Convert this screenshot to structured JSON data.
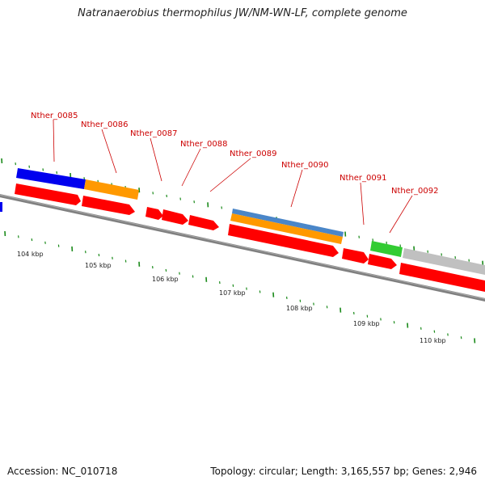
{
  "title": "Natranaerobius thermophilus JW/NM-WN-LF, complete genome",
  "footer": {
    "accession": "Accession: NC_010718",
    "topology": "Topology: circular; Length: 3,165,557 bp; Genes: 2,946"
  },
  "colors": {
    "backbone": "#808080",
    "gene_red": "#ff0000",
    "gene_blue": "#0000ee",
    "gene_orange": "#ff9900",
    "gene_steelblue": "#4a86c8",
    "gene_green": "#33cc33",
    "gene_gray": "#c0c0c0",
    "tick_green": "#1a8a1a",
    "label_red": "#cc0000"
  },
  "axis": {
    "unit": "kbp",
    "major_ticks": [
      "104 kbp",
      "105 kbp",
      "106 kbp",
      "107 kbp",
      "108 kbp",
      "109 kbp",
      "110 kbp"
    ]
  },
  "gene_labels": [
    "Nther_0085",
    "Nther_0086",
    "Nther_0087",
    "Nther_0088",
    "Nther_0089",
    "Nther_0090",
    "Nther_0091",
    "Nther_0092"
  ]
}
